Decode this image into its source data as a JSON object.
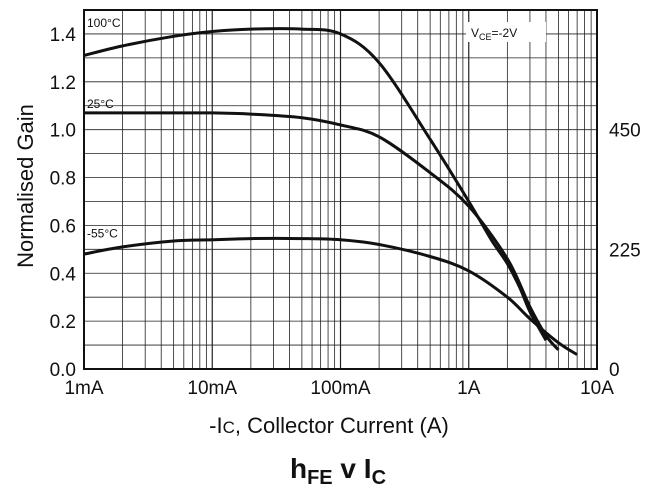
{
  "chart_data": {
    "type": "line",
    "x_scale": "log",
    "xlim": [
      0.001,
      10
    ],
    "ylim": [
      0,
      1.5
    ],
    "grid": true,
    "ylabel": "Normalised Gain",
    "xlabel_prefix": "-I",
    "xlabel_sub": "C",
    "xlabel_suffix": ", Collector Current (A)",
    "x_ticks": [
      {
        "value": 0.001,
        "label": "1mA"
      },
      {
        "value": 0.01,
        "label": "10mA"
      },
      {
        "value": 0.1,
        "label": "100mA"
      },
      {
        "value": 1,
        "label": "1A"
      },
      {
        "value": 10,
        "label": "10A"
      }
    ],
    "y_ticks": [
      {
        "value": 0.0,
        "label": "0.0"
      },
      {
        "value": 0.2,
        "label": "0.2"
      },
      {
        "value": 0.4,
        "label": "0.4"
      },
      {
        "value": 0.6,
        "label": "0.6"
      },
      {
        "value": 0.8,
        "label": "0.8"
      },
      {
        "value": 1.0,
        "label": "1.0"
      },
      {
        "value": 1.2,
        "label": "1.2"
      },
      {
        "value": 1.4,
        "label": "1.4"
      }
    ],
    "right_ticks": [
      {
        "value": 0.0,
        "label": "0"
      },
      {
        "value": 0.5,
        "label": "225"
      },
      {
        "value": 1.0,
        "label": "450"
      }
    ],
    "condition_prefix": "V",
    "condition_sub": "CE",
    "condition_value": "=-2V",
    "caption_main": "h",
    "caption_sub1": "FE",
    "caption_mid": " v I",
    "caption_sub2": "C",
    "series": [
      {
        "name": "100°C",
        "x": [
          0.001,
          0.002,
          0.005,
          0.01,
          0.02,
          0.05,
          0.1,
          0.2,
          0.5,
          1,
          1.5,
          2,
          2.5,
          3,
          4
        ],
        "y": [
          1.31,
          1.35,
          1.39,
          1.41,
          1.42,
          1.42,
          1.4,
          1.28,
          0.96,
          0.7,
          0.54,
          0.44,
          0.34,
          0.24,
          0.12
        ]
      },
      {
        "name": "25°C",
        "x": [
          0.001,
          0.005,
          0.01,
          0.02,
          0.05,
          0.1,
          0.2,
          0.5,
          1,
          2,
          3,
          4,
          5
        ],
        "y": [
          1.07,
          1.07,
          1.07,
          1.065,
          1.05,
          1.02,
          0.97,
          0.82,
          0.68,
          0.46,
          0.26,
          0.14,
          0.08
        ]
      },
      {
        "name": "-55°C",
        "x": [
          0.001,
          0.002,
          0.005,
          0.01,
          0.02,
          0.05,
          0.1,
          0.2,
          0.5,
          1,
          2,
          3,
          5,
          7
        ],
        "y": [
          0.48,
          0.51,
          0.535,
          0.54,
          0.545,
          0.545,
          0.54,
          0.52,
          0.47,
          0.41,
          0.3,
          0.21,
          0.11,
          0.06
        ]
      }
    ],
    "series_label_y": [
      1.43,
      1.09,
      0.55
    ]
  }
}
